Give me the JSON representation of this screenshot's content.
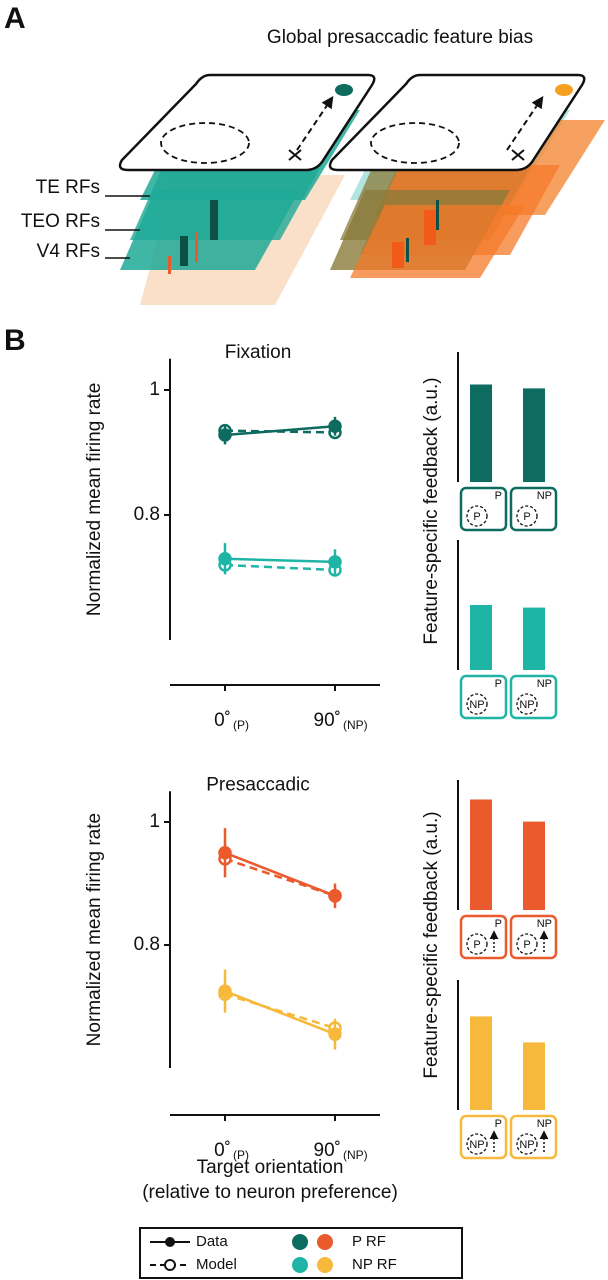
{
  "panel_a": {
    "label": "A",
    "title": "Global presaccadic feature bias",
    "layers": [
      "TE RFs",
      "TEO RFs",
      "V4 RFs"
    ]
  },
  "panel_b": {
    "label": "B"
  },
  "x_label": [
    "Target orientation",
    "(relative to neuron preference)"
  ],
  "legend": {
    "styles": [
      "Data",
      "Model"
    ],
    "groups": [
      {
        "label": "P RF",
        "colors": [
          "#0e6b5f",
          "#ea5a2c"
        ]
      },
      {
        "label": "NP RF",
        "colors": [
          "#1fb5a6",
          "#f6b93b"
        ]
      }
    ]
  },
  "chart_data": [
    {
      "type": "line",
      "title": "Fixation",
      "y_label": "Normalized mean firing rate",
      "categories": [
        "0˚",
        "90˚"
      ],
      "category_subscripts": [
        "(P)",
        "(NP)"
      ],
      "ylim": [
        0.6,
        1.05
      ],
      "yticks": [
        0.8,
        1
      ],
      "series": [
        {
          "color": "#0e6b5f",
          "style": "dashed",
          "marker": "open",
          "values": [
            0.935,
            0.932
          ]
        },
        {
          "color": "#0e6b5f",
          "style": "solid",
          "marker": "filled",
          "values": [
            0.928,
            0.942
          ],
          "errors": [
            0.015,
            0.015
          ]
        },
        {
          "color": "#1fb5a6",
          "style": "dashed",
          "marker": "open",
          "values": [
            0.72,
            0.712
          ]
        },
        {
          "color": "#1fb5a6",
          "style": "solid",
          "marker": "filled",
          "values": [
            0.73,
            0.725
          ],
          "errors": [
            0.025,
            0.02
          ]
        }
      ]
    },
    {
      "type": "bar",
      "y_label": "Feature-specific feedback (a.u.)",
      "color": "#0e6b5f",
      "ylim": [
        0,
        1
      ],
      "values": [
        0.75,
        0.72
      ],
      "saccade_arrow": false,
      "insets": [
        {
          "corner": "P",
          "circle": "P"
        },
        {
          "corner": "NP",
          "circle": "P"
        }
      ]
    },
    {
      "type": "bar",
      "color": "#1fb5a6",
      "ylim": [
        0,
        1
      ],
      "values": [
        0.5,
        0.48
      ],
      "saccade_arrow": false,
      "insets": [
        {
          "corner": "P",
          "circle": "NP"
        },
        {
          "corner": "NP",
          "circle": "NP"
        }
      ]
    },
    {
      "type": "line",
      "title": "Presaccadic",
      "y_label": "Normalized mean firing rate",
      "categories": [
        "0˚",
        "90˚"
      ],
      "category_subscripts": [
        "(P)",
        "(NP)"
      ],
      "ylim": [
        0.6,
        1.05
      ],
      "yticks": [
        0.8,
        1
      ],
      "series": [
        {
          "color": "#ea5a2c",
          "style": "dashed",
          "marker": "open",
          "values": [
            0.94,
            0.88
          ]
        },
        {
          "color": "#ea5a2c",
          "style": "solid",
          "marker": "filled",
          "values": [
            0.95,
            0.88
          ],
          "errors": [
            0.04,
            0.02
          ]
        },
        {
          "color": "#f6b93b",
          "style": "dashed",
          "marker": "open",
          "values": [
            0.72,
            0.665
          ]
        },
        {
          "color": "#f6b93b",
          "style": "solid",
          "marker": "filled",
          "values": [
            0.725,
            0.655
          ],
          "errors": [
            0.035,
            0.025
          ]
        }
      ]
    },
    {
      "type": "bar",
      "y_label": "Feature-specific feedback (a.u.)",
      "color": "#ea5a2c",
      "ylim": [
        0,
        1
      ],
      "values": [
        0.85,
        0.68
      ],
      "saccade_arrow": true,
      "insets": [
        {
          "corner": "P",
          "circle": "P"
        },
        {
          "corner": "NP",
          "circle": "P"
        }
      ]
    },
    {
      "type": "bar",
      "color": "#f6b93b",
      "ylim": [
        0,
        1
      ],
      "values": [
        0.72,
        0.52
      ],
      "saccade_arrow": true,
      "insets": [
        {
          "corner": "P",
          "circle": "NP"
        },
        {
          "corner": "NP",
          "circle": "NP"
        }
      ]
    }
  ]
}
